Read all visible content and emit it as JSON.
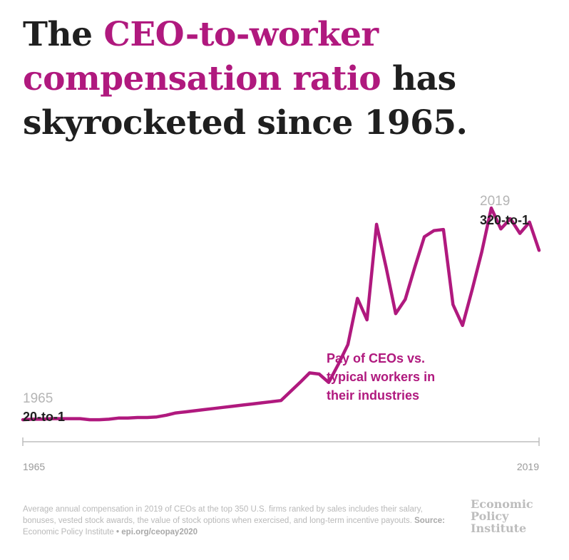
{
  "headline": {
    "part1": "The ",
    "highlight1": "CEO-to-worker",
    "highlight2": "compensation ratio",
    "part2": " has",
    "part3": "skyrocketed since 1965."
  },
  "chart_data": {
    "type": "line",
    "x": [
      1965,
      1966,
      1967,
      1968,
      1969,
      1970,
      1971,
      1972,
      1973,
      1974,
      1975,
      1976,
      1977,
      1978,
      1979,
      1980,
      1981,
      1982,
      1983,
      1984,
      1985,
      1986,
      1987,
      1988,
      1989,
      1990,
      1991,
      1992,
      1993,
      1994,
      1995,
      1996,
      1997,
      1998,
      1999,
      2000,
      2001,
      2002,
      2003,
      2004,
      2005,
      2006,
      2007,
      2008,
      2009,
      2010,
      2011,
      2012,
      2013,
      2014,
      2015,
      2016,
      2017,
      2018,
      2019
    ],
    "series": [
      {
        "name": "Pay of CEOs vs. typical workers in their industries",
        "values": [
          20,
          21,
          21,
          22,
          22,
          22,
          22,
          20,
          20,
          21,
          23,
          23,
          24,
          24,
          25,
          28,
          32,
          34,
          36,
          38,
          40,
          42,
          44,
          46,
          48,
          50,
          52,
          54,
          70,
          86,
          103,
          101,
          86,
          118,
          153,
          235,
          197,
          366,
          290,
          208,
          233,
          290,
          344,
          355,
          357,
          224,
          187,
          250,
          317,
          395,
          358,
          376,
          350,
          370,
          320
        ]
      }
    ],
    "start_label": {
      "year": "1965",
      "ratio": "20-to-1"
    },
    "end_label": {
      "year": "2019",
      "ratio": "320-to-1"
    },
    "axis": {
      "x_start": "1965",
      "x_end": "2019"
    },
    "ylim": [
      0,
      400
    ],
    "grid": false,
    "color": "#b0197e"
  },
  "footnote": {
    "text": "Average annual compensation in 2019 of CEOs at the top 350 U.S. firms ranked by sales includes their salary, bonuses, vested stock awards, the value of stock options when exercised, and long-term incentive payouts.",
    "source_label": "Source:",
    "source": "Economic Policy Institute",
    "separator": "•",
    "link": "epi.org/ceopay2020"
  },
  "logo": {
    "line1": "Economic",
    "line2": "Policy",
    "line3": "Institute"
  }
}
